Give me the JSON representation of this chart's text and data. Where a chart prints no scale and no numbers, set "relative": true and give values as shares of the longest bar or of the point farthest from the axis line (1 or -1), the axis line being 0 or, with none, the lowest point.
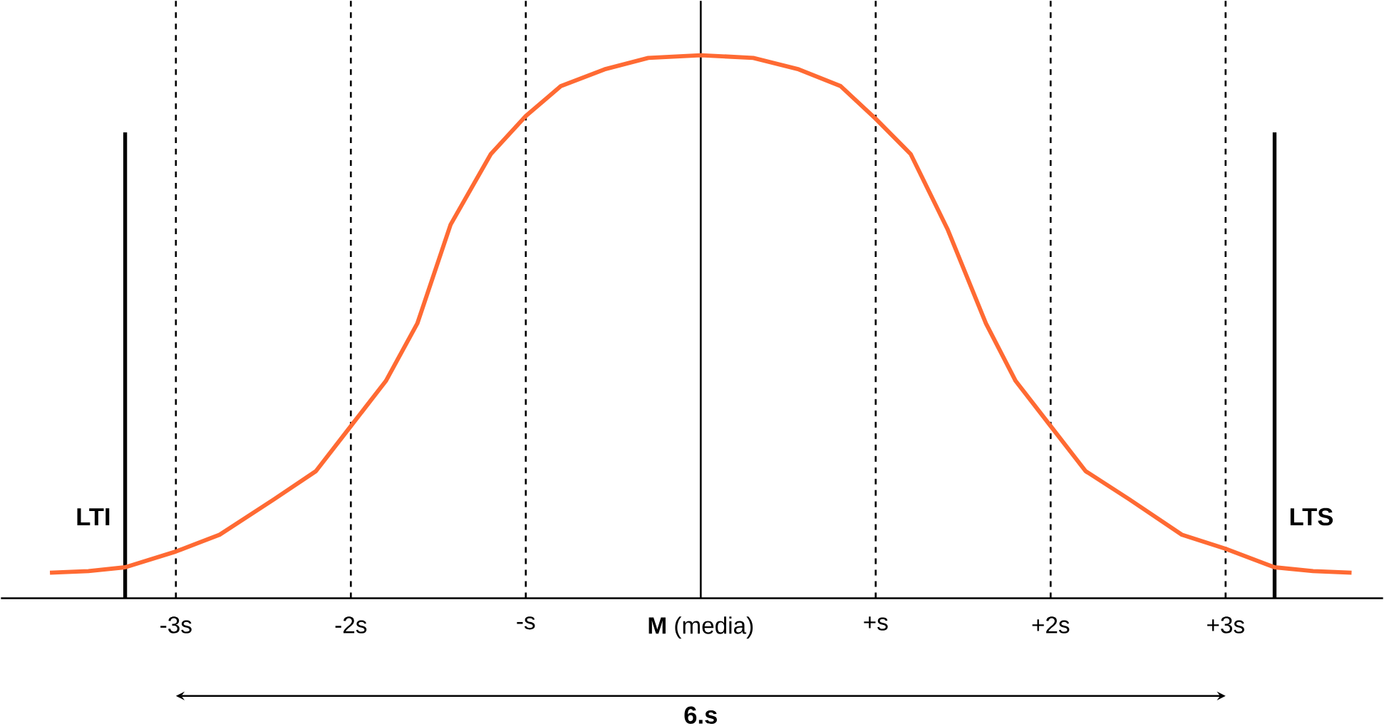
{
  "chart_data": {
    "type": "line",
    "relative": true,
    "color": "#ff6a33",
    "marker": "none",
    "line_style": "solid",
    "grid": false,
    "tick_labels": "x",
    "x": [
      -3.72,
      -3.5,
      -3.29,
      -3.0,
      -2.75,
      -2.44,
      -2.2,
      -2.0,
      -1.8,
      -1.62,
      -1.43,
      -1.2,
      -1.0,
      -0.8,
      -0.55,
      -0.3,
      0,
      0.3,
      0.56,
      0.8,
      1.0,
      1.2,
      1.41,
      1.63,
      1.8,
      2.0,
      2.2,
      2.45,
      2.75,
      3.0,
      3.28,
      3.5,
      3.72
    ],
    "values": [
      0.047,
      0.05,
      0.057,
      0.086,
      0.117,
      0.182,
      0.234,
      0.317,
      0.4,
      0.506,
      0.688,
      0.818,
      0.888,
      0.943,
      0.974,
      0.995,
      1,
      0.995,
      0.974,
      0.943,
      0.883,
      0.818,
      0.68,
      0.506,
      0.4,
      0.317,
      0.234,
      0.182,
      0.117,
      0.091,
      0.057,
      0.05,
      0.047
    ],
    "xlim": [
      -4,
      3.9
    ],
    "xticks": [
      {
        "value": -3,
        "label": "-3s"
      },
      {
        "value": -2,
        "label": "-2s"
      },
      {
        "value": -1,
        "label": "-s"
      },
      {
        "value": 0,
        "label": "**M** (media)"
      },
      {
        "value": 1,
        "label": "+s"
      },
      {
        "value": 2,
        "label": "+2s"
      },
      {
        "value": 3,
        "label": "+3s"
      }
    ],
    "ref_lines": [
      {
        "axis": "x",
        "value": -3.29,
        "label": "LTI",
        "color": "#000000",
        "line_style": "solid"
      },
      {
        "axis": "x",
        "value": 3.28,
        "label": "LTS",
        "color": "#000000",
        "line_style": "solid"
      },
      {
        "axis": "x",
        "value": -3,
        "color": "#000000",
        "line_style": "dashed"
      },
      {
        "axis": "x",
        "value": 3,
        "color": "#000000",
        "line_style": "dashed"
      },
      {
        "axis": "x",
        "value": -2,
        "color": "#000000",
        "line_style": "dashed"
      },
      {
        "axis": "x",
        "value": 2,
        "color": "#000000",
        "line_style": "dashed"
      },
      {
        "axis": "x",
        "value": -1,
        "color": "#000000",
        "line_style": "dashed"
      },
      {
        "axis": "x",
        "value": 1,
        "color": "#000000",
        "line_style": "dashed"
      },
      {
        "axis": "x",
        "value": 0,
        "color": "#000000",
        "line_style": "solid"
      }
    ],
    "annotations": [
      "6.s"
    ]
  }
}
